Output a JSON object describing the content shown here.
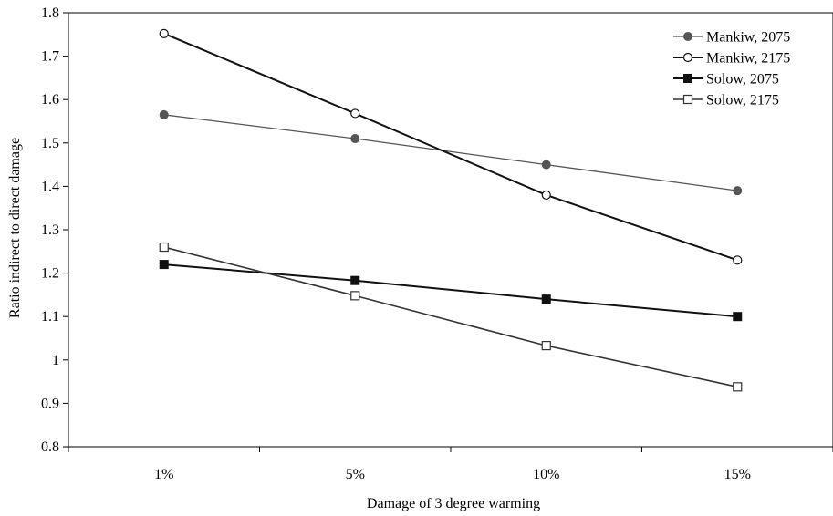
{
  "chart_data": {
    "type": "line",
    "title": "",
    "xlabel": "Damage of 3 degree warming",
    "ylabel": "Ratio indirect to direct damage",
    "categories": [
      "1%",
      "5%",
      "10%",
      "15%"
    ],
    "ylim": [
      0.8,
      1.8
    ],
    "yticks": [
      "0.8",
      "0.9",
      "1",
      "1.1",
      "1.2",
      "1.3",
      "1.4",
      "1.5",
      "1.6",
      "1.7",
      "1.8"
    ],
    "grid": false,
    "legend_position": "top-right",
    "series": [
      {
        "name": "Mankiw, 2075",
        "marker": "filled-circle",
        "color": "#555555",
        "values": [
          1.565,
          1.51,
          1.45,
          1.39
        ]
      },
      {
        "name": "Mankiw, 2175",
        "marker": "open-circle",
        "color": "#111111",
        "values": [
          1.752,
          1.568,
          1.38,
          1.23
        ]
      },
      {
        "name": "Solow, 2075",
        "marker": "filled-square",
        "color": "#111111",
        "values": [
          1.22,
          1.183,
          1.14,
          1.1
        ]
      },
      {
        "name": "Solow, 2175",
        "marker": "open-square",
        "color": "#333333",
        "values": [
          1.26,
          1.148,
          1.033,
          0.938
        ]
      }
    ]
  }
}
